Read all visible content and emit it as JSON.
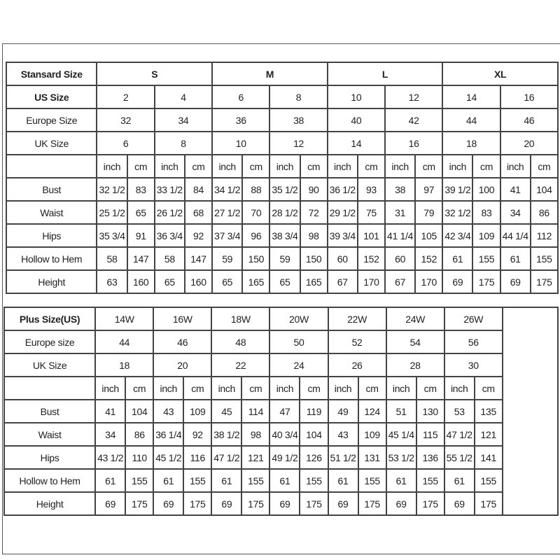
{
  "standard": {
    "title": "Stansard Size",
    "groups": [
      "S",
      "M",
      "L",
      "XL"
    ],
    "rows": [
      {
        "label": "US Size",
        "bold": true,
        "values": [
          "2",
          "4",
          "6",
          "8",
          "10",
          "12",
          "14",
          "16"
        ]
      },
      {
        "label": "Europe Size",
        "values": [
          "32",
          "34",
          "36",
          "38",
          "40",
          "42",
          "44",
          "46"
        ]
      },
      {
        "label": "UK Size",
        "values": [
          "6",
          "8",
          "10",
          "12",
          "14",
          "16",
          "18",
          "20"
        ]
      }
    ],
    "units": [
      "inch",
      "cm"
    ],
    "measurements": [
      {
        "label": "Bust",
        "values": [
          "32 1/2",
          "83",
          "33 1/2",
          "84",
          "34 1/2",
          "88",
          "35 1/2",
          "90",
          "36 1/2",
          "93",
          "38",
          "97",
          "39 1/2",
          "100",
          "41",
          "104"
        ]
      },
      {
        "label": "Waist",
        "values": [
          "25 1/2",
          "65",
          "26 1/2",
          "68",
          "27 1/2",
          "70",
          "28 1/2",
          "72",
          "29 1/2",
          "75",
          "31",
          "79",
          "32 1/2",
          "83",
          "34",
          "86"
        ]
      },
      {
        "label": "Hips",
        "values": [
          "35 3/4",
          "91",
          "36 3/4",
          "92",
          "37 3/4",
          "96",
          "38 3/4",
          "98",
          "39 3/4",
          "101",
          "41 1/4",
          "105",
          "42 3/4",
          "109",
          "44 1/4",
          "112"
        ]
      },
      {
        "label": "Hollow to Hem",
        "values": [
          "58",
          "147",
          "58",
          "147",
          "59",
          "150",
          "59",
          "150",
          "60",
          "152",
          "60",
          "152",
          "61",
          "155",
          "61",
          "155"
        ]
      },
      {
        "label": "Height",
        "values": [
          "63",
          "160",
          "65",
          "160",
          "65",
          "165",
          "65",
          "165",
          "67",
          "170",
          "67",
          "170",
          "69",
          "175",
          "69",
          "175"
        ]
      }
    ]
  },
  "plus": {
    "title": "Plus Size(US)",
    "sizes": [
      "14W",
      "16W",
      "18W",
      "20W",
      "22W",
      "24W",
      "26W"
    ],
    "rows": [
      {
        "label": "Europe size",
        "values": [
          "44",
          "46",
          "48",
          "50",
          "52",
          "54",
          "56"
        ]
      },
      {
        "label": "UK Size",
        "values": [
          "18",
          "20",
          "22",
          "24",
          "26",
          "28",
          "30"
        ]
      }
    ],
    "units": [
      "inch",
      "cm"
    ],
    "measurements": [
      {
        "label": "Bust",
        "values": [
          "41",
          "104",
          "43",
          "109",
          "45",
          "114",
          "47",
          "119",
          "49",
          "124",
          "51",
          "130",
          "53",
          "135"
        ]
      },
      {
        "label": "Waist",
        "values": [
          "34",
          "86",
          "36 1/4",
          "92",
          "38 1/2",
          "98",
          "40 3/4",
          "104",
          "43",
          "109",
          "45 1/4",
          "115",
          "47 1/2",
          "121"
        ]
      },
      {
        "label": "Hips",
        "values": [
          "43 1/2",
          "110",
          "45 1/2",
          "116",
          "47 1/2",
          "121",
          "49 1/2",
          "126",
          "51 1/2",
          "131",
          "53 1/2",
          "136",
          "55 1/2",
          "141"
        ]
      },
      {
        "label": "Hollow to Hem",
        "values": [
          "61",
          "155",
          "61",
          "155",
          "61",
          "155",
          "61",
          "155",
          "61",
          "155",
          "61",
          "155",
          "61",
          "155"
        ]
      },
      {
        "label": "Height",
        "values": [
          "69",
          "175",
          "69",
          "175",
          "69",
          "175",
          "69",
          "175",
          "69",
          "175",
          "69",
          "175",
          "69",
          "175"
        ]
      }
    ]
  }
}
